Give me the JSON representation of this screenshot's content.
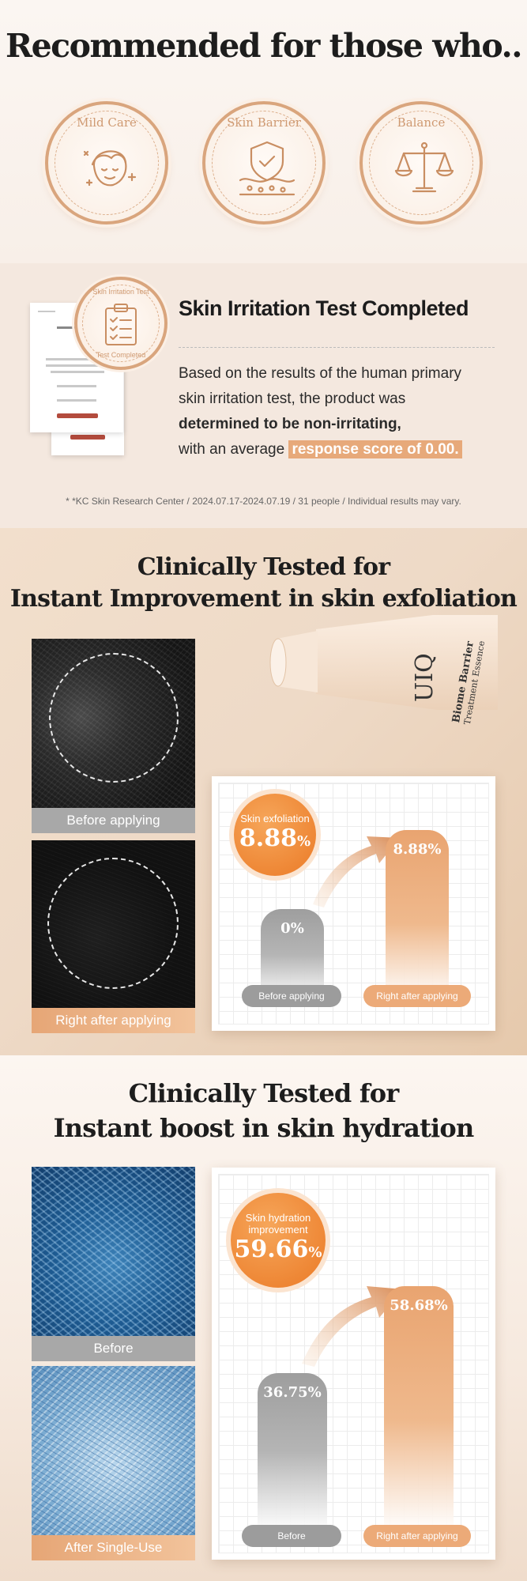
{
  "section1": {
    "title": "Recommended for those who..",
    "badges": [
      {
        "label": "Mild Care",
        "icon": "face-sparkle-icon"
      },
      {
        "label": "Skin Barrier",
        "icon": "shield-check-icon"
      },
      {
        "label": "Balance",
        "icon": "scale-icon"
      }
    ]
  },
  "section2": {
    "stamp_top": "Skin Irritation Test",
    "stamp_bottom": "Test Completed",
    "title": "Skin Irritation Test Completed",
    "line1": "Based on the results of the human primary",
    "line2": "skin irritation test, the product was",
    "line3": "determined to be non-irritating,",
    "line4_prefix": "with an average",
    "line4_highlight": "response score of 0.00.",
    "footnote": "* *KC Skin Research Center / 2024.07.17-2024.07.19 / 31 people / Individual results may vary."
  },
  "section3": {
    "title_line1": "Clinically Tested for",
    "title_line2": "Instant Improvement in skin exfoliation",
    "brand": "UIQ",
    "product_name_1": "Biome Barrier",
    "product_name_2": "Treatment Essence",
    "caption_before": "Before applying",
    "caption_after": "Right after applying",
    "bubble_label": "Skin exfoliation",
    "bubble_value": "8.88",
    "bubble_unit": "%",
    "bar_before_value": "0%",
    "bar_after_value": "8.88%",
    "pill_before": "Before applying",
    "pill_after": "Right after applying",
    "colors": {
      "orange": "#eb7a26",
      "peach": "#ecaa78",
      "grey": "#9c9c9c"
    }
  },
  "section4": {
    "title_line1": "Clinically Tested for",
    "title_line2": "Instant boost in skin hydration",
    "caption_before": "Before",
    "caption_after": "After Single-Use",
    "bubble_label_1": "Skin hydration",
    "bubble_label_2": "improvement",
    "bubble_value": "59.66",
    "bubble_unit": "%",
    "bar_before_value": "36.75%",
    "bar_after_value": "58.68%",
    "pill_before": "Before",
    "pill_after": "Right after applying"
  }
}
